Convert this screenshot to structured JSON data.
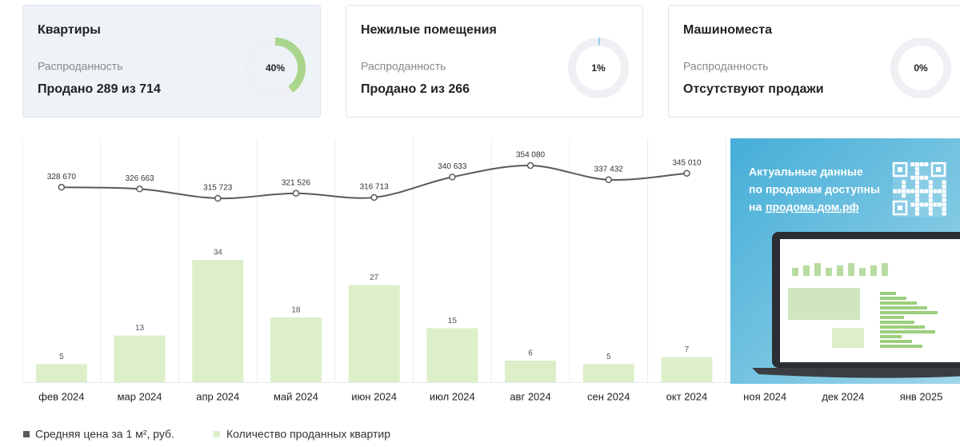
{
  "cards": [
    {
      "title": "Квартиры",
      "label": "Распроданность",
      "status": "Продано 289 из 714",
      "percent": 40,
      "percent_label": "40%",
      "ring_color": "#a9d68c"
    },
    {
      "title": "Нежилые помещения",
      "label": "Распроданность",
      "status": "Продано 2 из 266",
      "percent": 1,
      "percent_label": "1%",
      "ring_color": "#9fcfec"
    },
    {
      "title": "Машиноместа",
      "label": "Распроданность",
      "status": "Отсутствуют продажи",
      "percent": 0,
      "percent_label": "0%",
      "ring_color": "#a9d68c"
    }
  ],
  "chart_data": {
    "type": "combo",
    "categories": [
      "фев 2024",
      "мар 2024",
      "апр 2024",
      "май 2024",
      "июн 2024",
      "июл 2024",
      "авг 2024",
      "сен 2024",
      "окт 2024",
      "ноя 2024",
      "дек 2024",
      "янв 2025"
    ],
    "series": [
      {
        "name": "Средняя цена за 1 м², руб.",
        "kind": "line",
        "color": "#5a5a5a",
        "values": [
          328670,
          326663,
          315723,
          321526,
          316713,
          340633,
          354080,
          337432,
          345010,
          null,
          null,
          null
        ],
        "value_labels": [
          "328 670",
          "326 663",
          "315 723",
          "321 526",
          "316 713",
          "340 633",
          "354 080",
          "337 432",
          "345 010",
          null,
          null,
          null
        ]
      },
      {
        "name": "Количество проданных квартир",
        "kind": "bar",
        "color": "#dcefc9",
        "values": [
          5,
          13,
          34,
          18,
          27,
          15,
          6,
          5,
          7,
          null,
          null,
          null
        ]
      }
    ]
  },
  "banner": {
    "lines": [
      "Актуальные данные",
      "по продажам доступны"
    ],
    "prefix": "на",
    "link": "продома.дом.рф"
  }
}
